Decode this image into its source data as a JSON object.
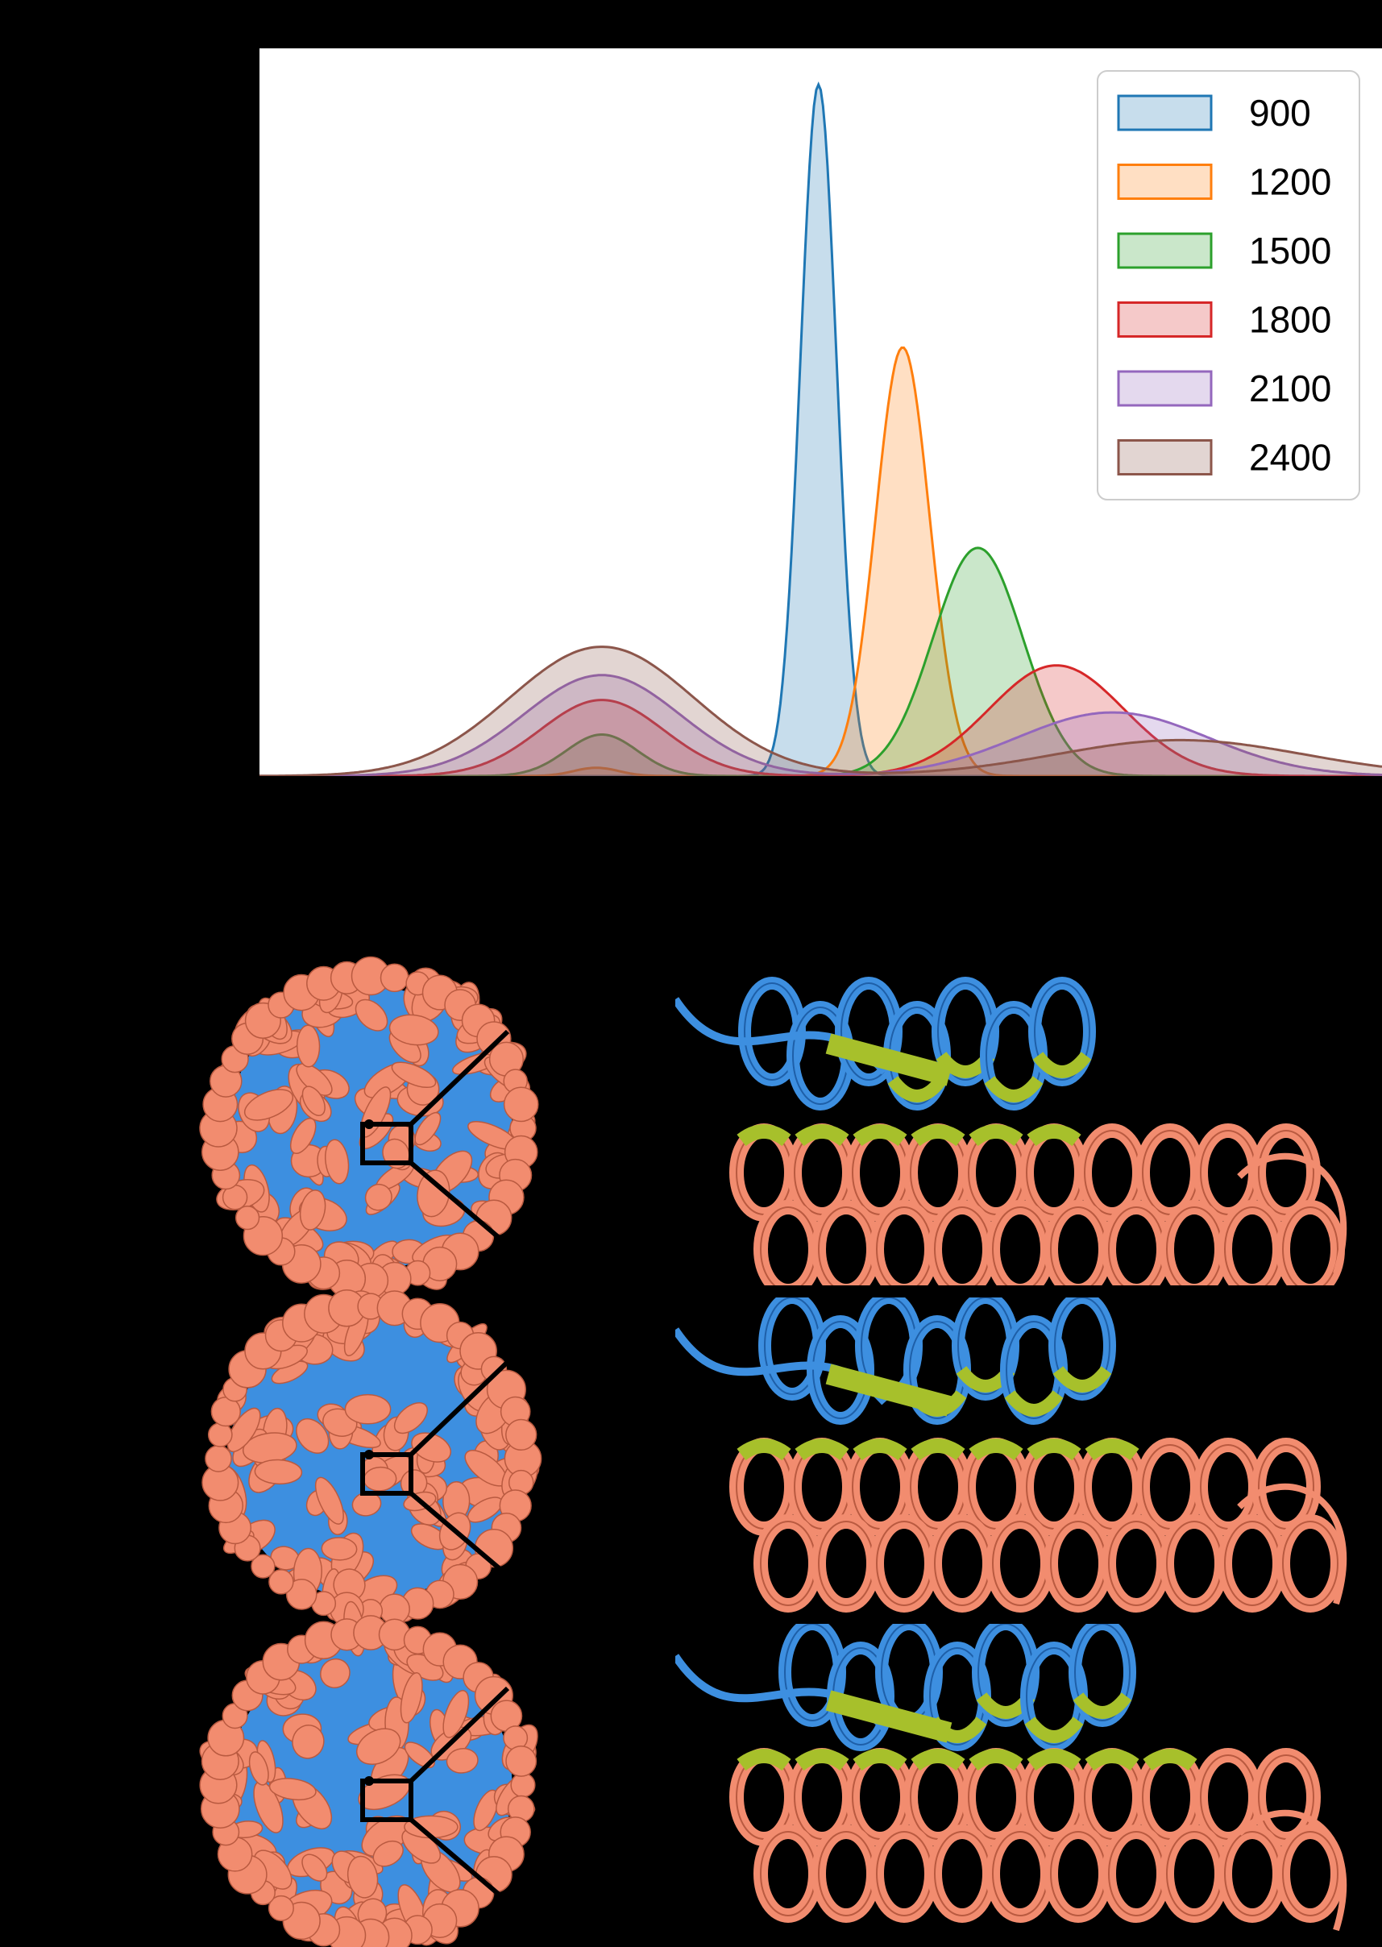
{
  "figure": {
    "background": "#000000"
  },
  "colors": {
    "capsid_protein": "#f28c6f",
    "capsid_protein_dark": "#b95a40",
    "scaffold_protein": "#3d8fe0",
    "scaffold_protein_dark": "#1e5fa8",
    "contact_highlight": "#a7c02b",
    "zoom_box": "#000000"
  },
  "chart_data": {
    "type": "area",
    "title": "",
    "xlabel": "",
    "ylabel": "",
    "grid": false,
    "legend_placement": "top-right",
    "x": [
      0,
      1,
      2,
      3,
      4,
      5,
      6,
      7,
      8,
      9,
      10
    ],
    "series": [
      {
        "name": "900",
        "color": "#1f77b4",
        "peaks": [
          {
            "x": 4.98,
            "height": 1.0,
            "sigma": 0.16
          }
        ]
      },
      {
        "name": "1200",
        "color": "#ff7f0e",
        "peaks": [
          {
            "x": 5.73,
            "height": 0.62,
            "sigma": 0.24
          },
          {
            "x": 3.0,
            "height": 0.012,
            "sigma": 0.2
          }
        ]
      },
      {
        "name": "1500",
        "color": "#2ca02c",
        "peaks": [
          {
            "x": 6.4,
            "height": 0.33,
            "sigma": 0.4
          },
          {
            "x": 3.05,
            "height": 0.06,
            "sigma": 0.32
          }
        ]
      },
      {
        "name": "1800",
        "color": "#d62728",
        "peaks": [
          {
            "x": 7.1,
            "height": 0.16,
            "sigma": 0.6
          },
          {
            "x": 3.05,
            "height": 0.11,
            "sigma": 0.55
          }
        ]
      },
      {
        "name": "2100",
        "color": "#9467bd",
        "peaks": [
          {
            "x": 7.6,
            "height": 0.092,
            "sigma": 0.85
          },
          {
            "x": 3.05,
            "height": 0.146,
            "sigma": 0.7
          }
        ]
      },
      {
        "name": "2400",
        "color": "#8c564b",
        "peaks": [
          {
            "x": 8.2,
            "height": 0.052,
            "sigma": 1.1
          },
          {
            "x": 3.05,
            "height": 0.187,
            "sigma": 0.82
          }
        ]
      }
    ]
  },
  "structures": {
    "rows": [
      {
        "name": "row-1"
      },
      {
        "name": "row-2"
      },
      {
        "name": "row-3"
      }
    ]
  }
}
